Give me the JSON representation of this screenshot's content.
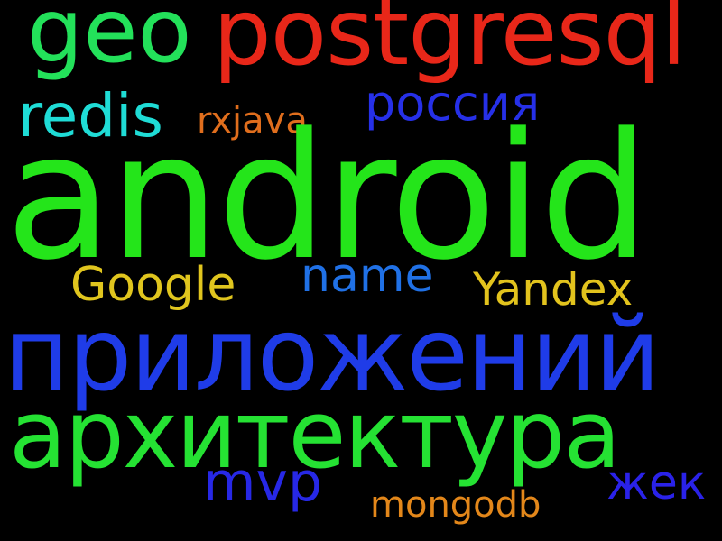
{
  "words": [
    {
      "id": "android",
      "text": "android",
      "color": "#24e51a"
    },
    {
      "id": "postgresql",
      "text": "postgresql",
      "color": "#e82719"
    },
    {
      "id": "geo",
      "text": "geo",
      "color": "#23e15a"
    },
    {
      "id": "redis",
      "text": "redis",
      "color": "#1fdcd6"
    },
    {
      "id": "rxjava",
      "text": "rxjava",
      "color": "#e06e1d"
    },
    {
      "id": "russia",
      "text": "россия",
      "color": "#2630e8"
    },
    {
      "id": "google",
      "text": "Google",
      "color": "#e0c51e"
    },
    {
      "id": "name",
      "text": "name",
      "color": "#2071e6"
    },
    {
      "id": "yandex",
      "text": "Yandex",
      "color": "#e2c31d"
    },
    {
      "id": "prilozheniy",
      "text": "приложений",
      "color": "#1f3ce8"
    },
    {
      "id": "arkhitektura",
      "text": "архитектура",
      "color": "#25e233"
    },
    {
      "id": "mvp",
      "text": "mvp",
      "color": "#2728e6"
    },
    {
      "id": "zhek",
      "text": "жек",
      "color": "#2a22e8"
    },
    {
      "id": "mongodb",
      "text": "mongodb",
      "color": "#e3871a"
    }
  ]
}
